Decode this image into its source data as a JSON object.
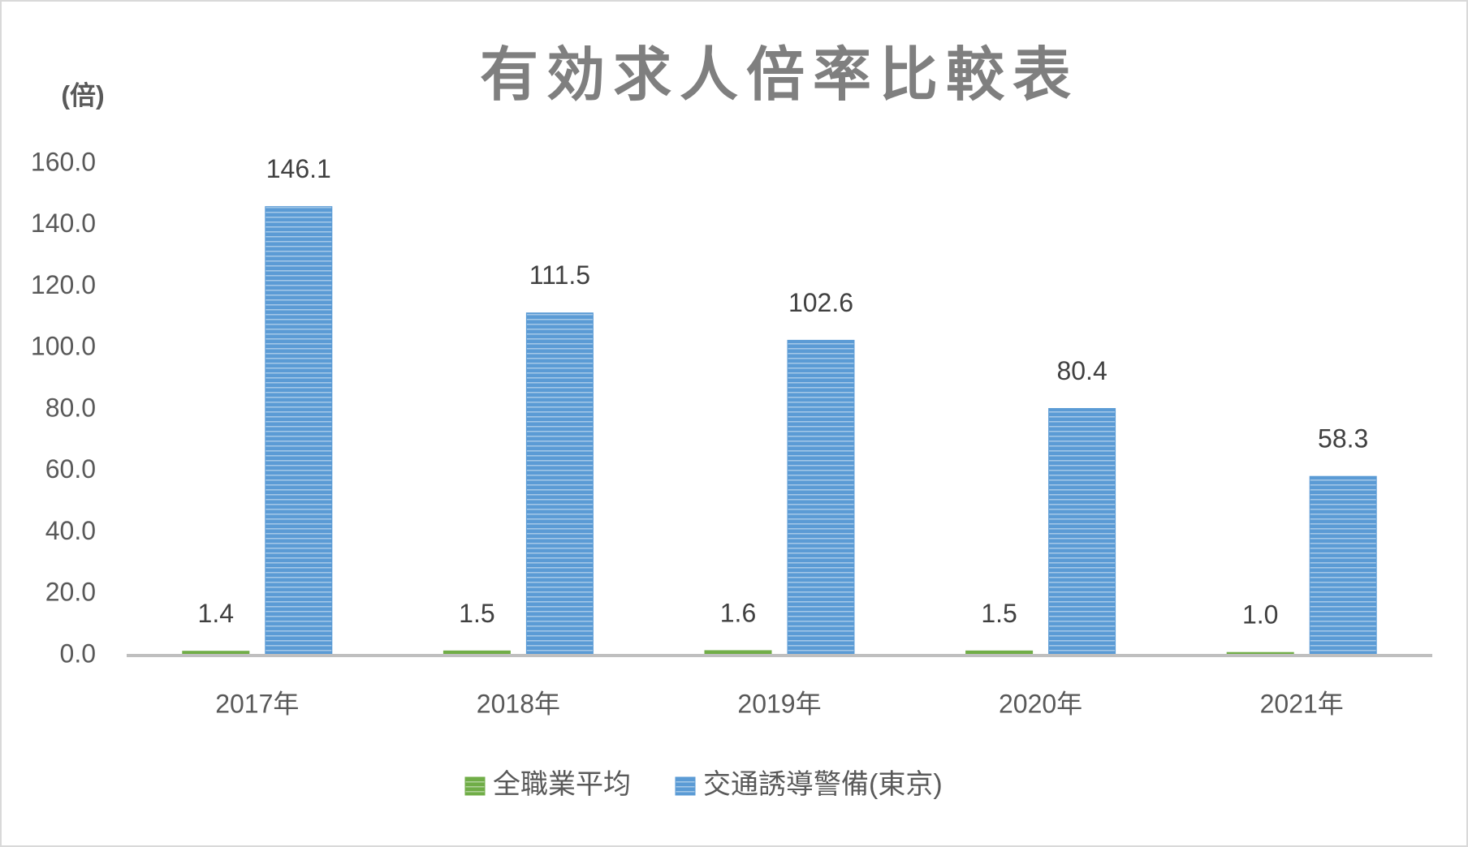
{
  "chart_data": {
    "type": "bar",
    "title": "有効求人倍率比較表",
    "y_label": "(倍)",
    "categories": [
      "2017年",
      "2018年",
      "2019年",
      "2020年",
      "2021年"
    ],
    "series": [
      {
        "name": "全職業平均",
        "color": "#70ad47",
        "values": [
          1.4,
          1.5,
          1.6,
          1.5,
          1.0
        ],
        "value_labels": [
          "1.4",
          "1.5",
          "1.6",
          "1.5",
          "1.0"
        ]
      },
      {
        "name": "交通誘導警備(東京)",
        "color": "#5b9bd5",
        "values": [
          146.1,
          111.5,
          102.6,
          80.4,
          58.3
        ]
      }
    ],
    "ylim": [
      0,
      160
    ],
    "yticks": [
      {
        "value": 0,
        "label": "0.0"
      },
      {
        "value": 20,
        "label": "20.0"
      },
      {
        "value": 40,
        "label": "40.0"
      },
      {
        "value": 60,
        "label": "60.0"
      },
      {
        "value": 80,
        "label": "80.0"
      },
      {
        "value": 100,
        "label": "100.0"
      },
      {
        "value": 120,
        "label": "120.0"
      },
      {
        "value": 140,
        "label": "140.0"
      },
      {
        "value": 160,
        "label": "160.0"
      }
    ],
    "legend": "bottom"
  }
}
